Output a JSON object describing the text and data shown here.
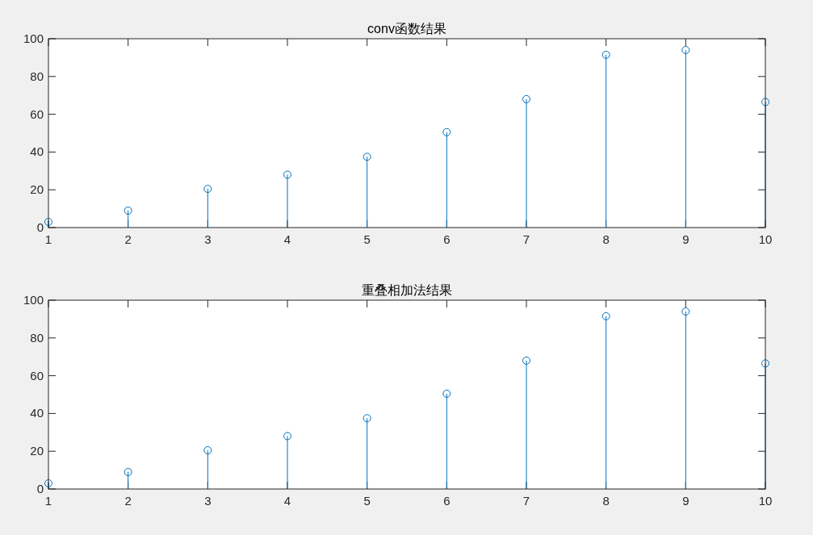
{
  "chart_data": [
    {
      "type": "lollipop",
      "title": "conv函数结果",
      "x": [
        1,
        2,
        3,
        4,
        5,
        6,
        7,
        8,
        9,
        10
      ],
      "values": [
        3,
        9,
        20.5,
        28,
        37.5,
        50.5,
        68,
        91.5,
        94,
        66.5
      ],
      "color": "#0072bd",
      "marker": "circle",
      "xlim": [
        1,
        10
      ],
      "xticks": [
        1,
        2,
        3,
        4,
        5,
        6,
        7,
        8,
        9,
        10
      ],
      "ylim": [
        0,
        100
      ],
      "yticks": [
        0,
        20,
        40,
        60,
        80,
        100
      ]
    },
    {
      "type": "lollipop",
      "title": "重叠相加法结果",
      "x": [
        1,
        2,
        3,
        4,
        5,
        6,
        7,
        8,
        9,
        10
      ],
      "values": [
        3,
        9,
        20.5,
        28,
        37.5,
        50.5,
        68,
        91.5,
        94,
        66.5
      ],
      "color": "#0072bd",
      "marker": "circle",
      "xlim": [
        1,
        10
      ],
      "xticks": [
        1,
        2,
        3,
        4,
        5,
        6,
        7,
        8,
        9,
        10
      ],
      "ylim": [
        0,
        100
      ],
      "yticks": [
        0,
        20,
        40,
        60,
        80,
        100
      ]
    }
  ]
}
